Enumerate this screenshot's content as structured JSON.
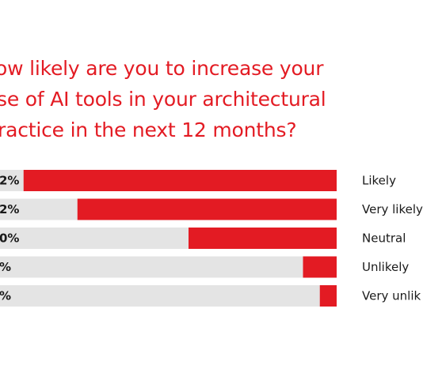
{
  "title_lines": [
    "ow likely are you to increase your",
    "se of AI tools in your architectural",
    "ractice in the next 12 months?"
  ],
  "colors": {
    "title": "#e31b23",
    "bar_fill": "#e31b23",
    "bar_track": "#e4e4e4",
    "label_text": "#1a1a1a"
  },
  "chart_data": {
    "type": "bar",
    "orientation": "horizontal",
    "categories": [
      "Likely",
      "Very likely",
      "Neutral",
      "Unlikely",
      "Very unlik"
    ],
    "percent_labels": [
      "2%",
      "2%",
      "0%",
      "%",
      "%"
    ],
    "values": [
      93,
      77,
      44,
      10,
      5
    ],
    "xlim": [
      0,
      100
    ]
  }
}
